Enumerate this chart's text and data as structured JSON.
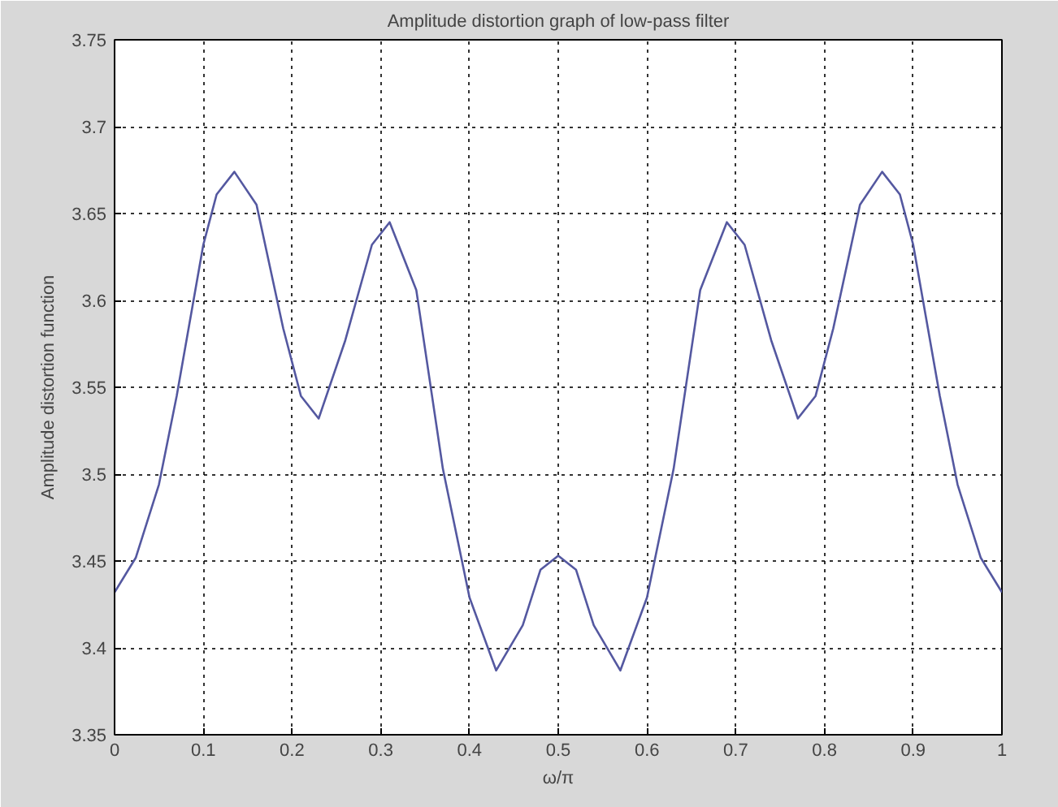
{
  "chart_data": {
    "type": "line",
    "title": "Amplitude distortion graph of low-pass filter",
    "xlabel": "ω/π",
    "ylabel": "Amplitude distortion function",
    "x": [
      0,
      0.024,
      0.05,
      0.07,
      0.1,
      0.115,
      0.135,
      0.16,
      0.19,
      0.21,
      0.23,
      0.26,
      0.29,
      0.31,
      0.34,
      0.37,
      0.4,
      0.43,
      0.46,
      0.48,
      0.5,
      0.52,
      0.54,
      0.57,
      0.6,
      0.63,
      0.66,
      0.69,
      0.71,
      0.74,
      0.77,
      0.79,
      0.81,
      0.84,
      0.865,
      0.885,
      0.9,
      0.93,
      0.95,
      0.976,
      1
    ],
    "series": [
      {
        "color": "#5458a0",
        "values": [
          3.432,
          3.452,
          3.494,
          3.545,
          3.632,
          3.661,
          3.674,
          3.655,
          3.584,
          3.545,
          3.532,
          3.577,
          3.632,
          3.645,
          3.606,
          3.503,
          3.429,
          3.387,
          3.413,
          3.445,
          3.453,
          3.445,
          3.413,
          3.387,
          3.429,
          3.503,
          3.606,
          3.645,
          3.632,
          3.577,
          3.532,
          3.545,
          3.584,
          3.655,
          3.674,
          3.661,
          3.632,
          3.545,
          3.494,
          3.452,
          3.432
        ]
      }
    ],
    "xlim": [
      0,
      1
    ],
    "ylim": [
      3.35,
      3.75
    ],
    "xticks": [
      0,
      0.1,
      0.2,
      0.3,
      0.4,
      0.5,
      0.6,
      0.7,
      0.8,
      0.9,
      1
    ],
    "yticks": [
      3.35,
      3.4,
      3.45,
      3.5,
      3.55,
      3.6,
      3.65,
      3.7,
      3.75
    ],
    "grid": true,
    "line_style": "solid"
  }
}
